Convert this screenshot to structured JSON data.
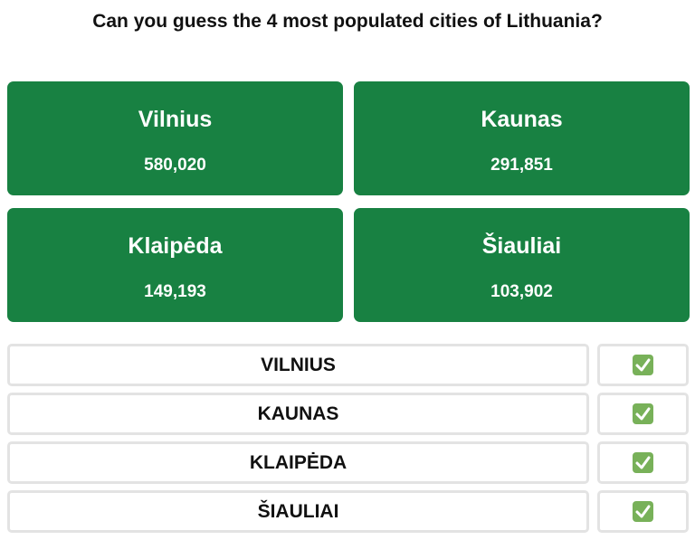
{
  "title": "Can you guess the 4 most populated cities of Lithuania?",
  "cards": [
    {
      "name": "Vilnius",
      "population": "580,020"
    },
    {
      "name": "Kaunas",
      "population": "291,851"
    },
    {
      "name": "Klaipėda",
      "population": "149,193"
    },
    {
      "name": "Šiauliai",
      "population": "103,902"
    }
  ],
  "guesses": [
    {
      "text": "VILNIUS"
    },
    {
      "text": "KAUNAS"
    },
    {
      "text": "KLAIPĖDA"
    },
    {
      "text": "ŠIAULIAI"
    }
  ]
}
